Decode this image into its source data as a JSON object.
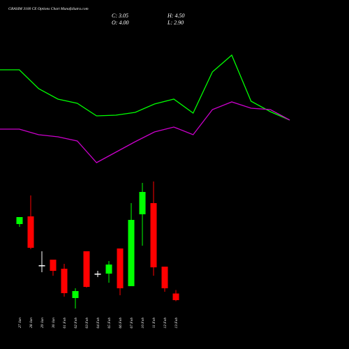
{
  "chart_data": [
    {
      "type": "candlestick",
      "title": "GRASIM 3100 CE Options  Chart MunafaSutra.com",
      "ohlc_labels": [
        "C: 3.05",
        "H: 4.50",
        "O: 4.00",
        "L: 2.90"
      ],
      "categories": [
        "27 Jan",
        "28 Jan",
        "29 Jan",
        "30 Jan",
        "01 Feb",
        "02 Feb",
        "03 Feb",
        "04 Feb",
        "05 Feb",
        "06 Feb",
        "07 Feb",
        "10 Feb",
        "11 Feb",
        "12 Feb",
        "13 Feb"
      ],
      "open": [
        13.95,
        15.05,
        8.05,
        8.85,
        7.55,
        3.35,
        10.05,
        6.85,
        6.85,
        10.45,
        5.05,
        15.35,
        16.95,
        7.85,
        4.0
      ],
      "high": [
        14.95,
        18.05,
        10.05,
        8.85,
        8.25,
        4.75,
        10.05,
        7.25,
        8.65,
        10.45,
        16.95,
        19.85,
        20.05,
        7.85,
        4.5
      ],
      "low": [
        13.55,
        10.35,
        7.05,
        6.55,
        3.55,
        1.85,
        4.85,
        6.35,
        5.55,
        3.75,
        5.05,
        10.85,
        6.55,
        4.25,
        2.9
      ],
      "close": [
        14.95,
        10.55,
        8.05,
        7.25,
        4.05,
        4.35,
        4.95,
        6.85,
        8.15,
        4.75,
        14.55,
        18.55,
        7.75,
        4.75,
        3.05
      ],
      "up_color": "#00ff00",
      "down_color": "#ff0000",
      "flat_color": "#ffffff",
      "ylim": [
        0,
        25
      ]
    },
    {
      "type": "line",
      "series": [
        {
          "name": "upper",
          "color": "#00ff00",
          "values": [
            30,
            30,
            24.6,
            21.6,
            20.4,
            16.8,
            17,
            17.8,
            20.2,
            21.6,
            17.6,
            29.4,
            34.2,
            21,
            18,
            15.6
          ]
        },
        {
          "name": "lower",
          "color": "#cc00cc",
          "values": [
            13,
            13,
            11.4,
            10.8,
            9.6,
            3.4,
            6.4,
            9.4,
            12.2,
            13.6,
            11.4,
            18.6,
            20.8,
            19,
            18.6,
            15.6
          ]
        }
      ],
      "ylim": [
        0,
        50
      ]
    }
  ]
}
